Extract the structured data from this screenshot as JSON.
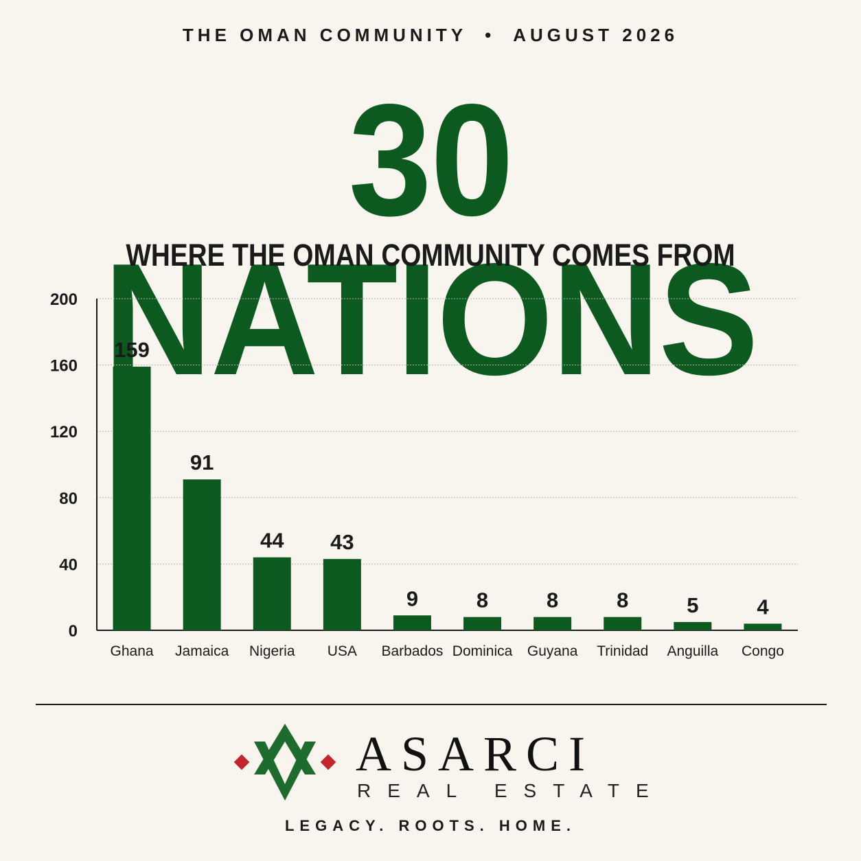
{
  "header": {
    "kicker_left": "THE OMAN COMMUNITY",
    "kicker_sep": "•",
    "kicker_right": "AUGUST 2026",
    "headline": "30 NATIONS",
    "subhead": "WHERE THE OMAN COMMUNITY COMES FROM"
  },
  "chart_data": {
    "type": "bar",
    "title": "",
    "xlabel": "",
    "ylabel": "",
    "ylim": [
      0,
      200
    ],
    "yticks": [
      0,
      40,
      80,
      120,
      160,
      200
    ],
    "grid": true,
    "categories": [
      "Ghana",
      "Jamaica",
      "Nigeria",
      "USA",
      "Barbados",
      "Dominica",
      "Guyana",
      "Trinidad",
      "Anguilla",
      "Congo"
    ],
    "values": [
      159,
      91,
      44,
      43,
      9,
      8,
      8,
      8,
      5,
      4
    ],
    "bar_color": "#0d5a20"
  },
  "footer": {
    "brand": "ASARCI",
    "brand_sub": "REAL ESTATE",
    "tagline": "LEGACY. ROOTS. HOME.",
    "logo_icon": "asarci-logo-icon",
    "accent_green": "#1e6b2e",
    "accent_red": "#c0262b"
  }
}
